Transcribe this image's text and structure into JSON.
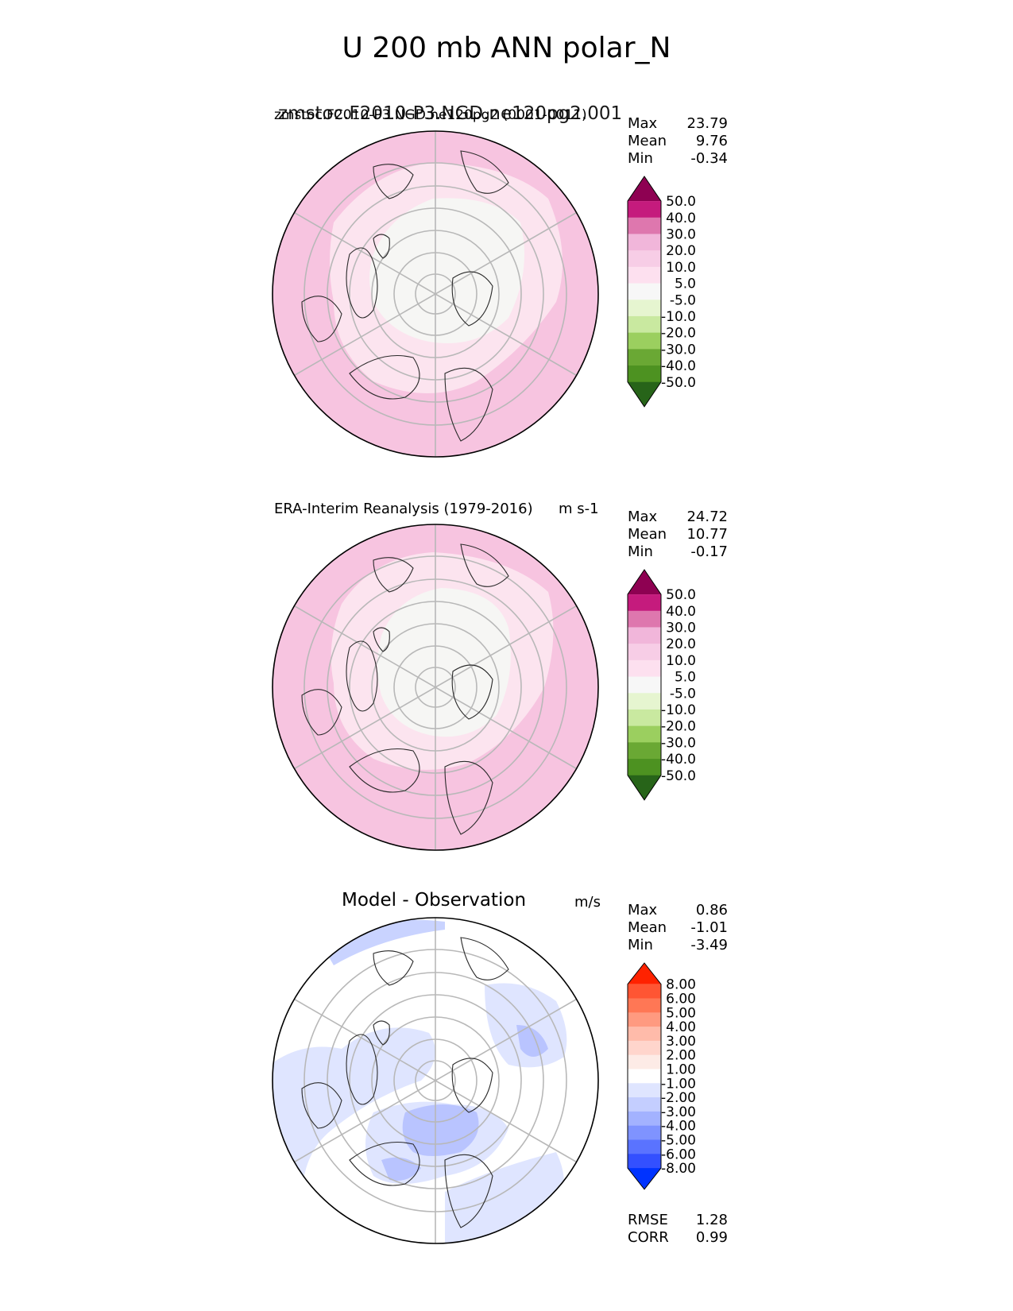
{
  "figure": {
    "title": "U 200 mb ANN polar_N"
  },
  "panels": [
    {
      "title_left": "zmstoc.F2010-P3.NGD.ne120pg2.001",
      "title_overlap": "zmstoc.F2010-P3.NGD.ne120pg2 (0001-0011)",
      "title_right": "",
      "stats": [
        {
          "label": "Max",
          "value": "23.79"
        },
        {
          "label": "Mean",
          "value": "9.76"
        },
        {
          "label": "Min",
          "value": "-0.34"
        }
      ],
      "colorbar": {
        "labels": [
          "50.0",
          "40.0",
          "30.0",
          "20.0",
          "10.0",
          "5.0",
          "-5.0",
          "-10.0",
          "-20.0",
          "-30.0",
          "-40.0",
          "-50.0"
        ],
        "colors": [
          "#8e0152",
          "#c51b7d",
          "#de77ae",
          "#f1b6da",
          "#f7cde6",
          "#fde0ef",
          "#f7f7f7",
          "#e6f5d0",
          "#c9e9a0",
          "#9bcf5f",
          "#6aa834",
          "#4d9221",
          "#276419"
        ]
      }
    },
    {
      "title_left": "ERA-Interim Reanalysis (1979-2016)",
      "title_right": "m s-1",
      "stats": [
        {
          "label": "Max",
          "value": "24.72"
        },
        {
          "label": "Mean",
          "value": "10.77"
        },
        {
          "label": "Min",
          "value": "-0.17"
        }
      ],
      "colorbar": {
        "labels": [
          "50.0",
          "40.0",
          "30.0",
          "20.0",
          "10.0",
          "5.0",
          "-5.0",
          "-10.0",
          "-20.0",
          "-30.0",
          "-40.0",
          "-50.0"
        ],
        "colors": [
          "#8e0152",
          "#c51b7d",
          "#de77ae",
          "#f1b6da",
          "#f7cde6",
          "#fde0ef",
          "#f7f7f7",
          "#e6f5d0",
          "#c9e9a0",
          "#9bcf5f",
          "#6aa834",
          "#4d9221",
          "#276419"
        ]
      }
    },
    {
      "title_center": "Model - Observation",
      "title_right": "m/s",
      "stats": [
        {
          "label": "Max",
          "value": "0.86"
        },
        {
          "label": "Mean",
          "value": "-1.01"
        },
        {
          "label": "Min",
          "value": "-3.49"
        }
      ],
      "extra_stats": [
        {
          "label": "RMSE",
          "value": "1.28"
        },
        {
          "label": "CORR",
          "value": "0.99"
        }
      ],
      "colorbar": {
        "labels": [
          "8.00",
          "6.00",
          "5.00",
          "4.00",
          "3.00",
          "2.00",
          "1.00",
          "-1.00",
          "-2.00",
          "-3.00",
          "-4.00",
          "-5.00",
          "-6.00",
          "-8.00"
        ],
        "colors": [
          "#ff2200",
          "#ff5533",
          "#ff7755",
          "#ff9a80",
          "#ffbbaa",
          "#ffd5cc",
          "#fdebe6",
          "#ffffff",
          "#dfe5ff",
          "#c4ceff",
          "#a3b2ff",
          "#7f93ff",
          "#5a73ff",
          "#3350ff",
          "#0033ff"
        ]
      }
    }
  ],
  "chart_data": {
    "type": "heatmap",
    "projection": "north polar stereographic",
    "variable": "U 200 mb ANN polar_N",
    "panels": [
      {
        "name": "zmstoc.F2010-P3.NGD.ne120pg2",
        "max": 23.79,
        "mean": 9.76,
        "min": -0.34,
        "levels": [
          -50,
          -40,
          -30,
          -20,
          -10,
          -5,
          5,
          10,
          20,
          30,
          40,
          50
        ]
      },
      {
        "name": "ERA-Interim Reanalysis (1979-2016)",
        "units": "m s-1",
        "max": 24.72,
        "mean": 10.77,
        "min": -0.17,
        "levels": [
          -50,
          -40,
          -30,
          -20,
          -10,
          -5,
          5,
          10,
          20,
          30,
          40,
          50
        ]
      },
      {
        "name": "Model - Observation",
        "units": "m/s",
        "max": 0.86,
        "mean": -1.01,
        "min": -3.49,
        "rmse": 1.28,
        "corr": 0.99,
        "levels": [
          -8,
          -6,
          -5,
          -4,
          -3,
          -2,
          -1,
          1,
          2,
          3,
          4,
          5,
          6,
          8
        ]
      }
    ]
  }
}
